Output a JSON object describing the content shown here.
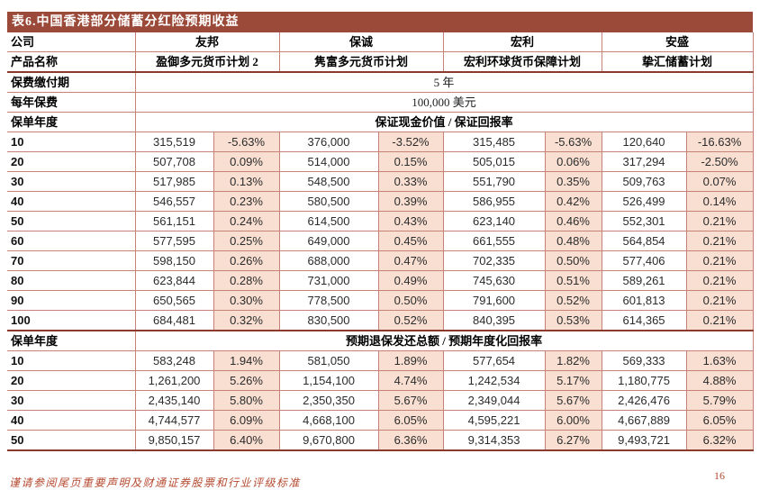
{
  "page": {
    "title": "表6.中国香港部分储蓄分红险预期收益",
    "footer_note": "谨请参阅尾页重要声明及财通证券股票和行业评级标准",
    "page_number": "16"
  },
  "colors": {
    "title_bar_bg": "#9B4938",
    "section_divider": "#8C3A2B",
    "grid_border": "#C68277",
    "percent_cell_bg": "#F8DFD1",
    "footer_text": "#B5492F"
  },
  "table": {
    "row_labels": {
      "company": "公司",
      "product": "产品名称",
      "payment_period": "保费缴付期",
      "annual_premium": "每年保费",
      "policy_year": "保单年度"
    },
    "companies": [
      "友邦",
      "保诚",
      "宏利",
      "安盛"
    ],
    "products": [
      "盈御多元货币计划 2",
      "隽富多元货币计划",
      "宏利环球货币保障计划",
      "挚汇储蓄计划"
    ],
    "payment_period_value": "5 年",
    "annual_premium_value": "100,000 美元",
    "section1": {
      "header": "保证现金价值 / 保证回报率",
      "years": [
        "10",
        "20",
        "30",
        "40",
        "50",
        "60",
        "70",
        "80",
        "90",
        "100"
      ],
      "rows": [
        [
          "315,519",
          "-5.63%",
          "376,000",
          "-3.52%",
          "315,485",
          "-5.63%",
          "120,640",
          "-16.63%"
        ],
        [
          "507,708",
          "0.09%",
          "514,000",
          "0.15%",
          "505,015",
          "0.06%",
          "317,294",
          "-2.50%"
        ],
        [
          "517,985",
          "0.13%",
          "548,500",
          "0.33%",
          "551,790",
          "0.35%",
          "509,763",
          "0.07%"
        ],
        [
          "546,557",
          "0.23%",
          "580,500",
          "0.39%",
          "586,955",
          "0.42%",
          "526,499",
          "0.14%"
        ],
        [
          "561,151",
          "0.24%",
          "614,500",
          "0.43%",
          "623,140",
          "0.46%",
          "552,301",
          "0.21%"
        ],
        [
          "577,595",
          "0.25%",
          "649,000",
          "0.45%",
          "661,555",
          "0.48%",
          "564,854",
          "0.21%"
        ],
        [
          "598,150",
          "0.26%",
          "688,000",
          "0.47%",
          "702,335",
          "0.50%",
          "577,406",
          "0.21%"
        ],
        [
          "623,844",
          "0.28%",
          "731,000",
          "0.49%",
          "745,630",
          "0.51%",
          "589,261",
          "0.21%"
        ],
        [
          "650,565",
          "0.30%",
          "778,500",
          "0.50%",
          "791,600",
          "0.52%",
          "601,813",
          "0.21%"
        ],
        [
          "684,481",
          "0.32%",
          "830,500",
          "0.52%",
          "840,395",
          "0.53%",
          "614,365",
          "0.21%"
        ]
      ]
    },
    "section2": {
      "header": "预期退保发还总额 / 预期年度化回报率",
      "years": [
        "10",
        "20",
        "30",
        "40",
        "50"
      ],
      "rows": [
        [
          "583,248",
          "1.94%",
          "581,050",
          "1.89%",
          "577,654",
          "1.82%",
          "569,333",
          "1.63%"
        ],
        [
          "1,261,200",
          "5.26%",
          "1,154,100",
          "4.74%",
          "1,242,534",
          "5.17%",
          "1,180,775",
          "4.88%"
        ],
        [
          "2,435,140",
          "5.80%",
          "2,350,350",
          "5.67%",
          "2,349,044",
          "5.67%",
          "2,426,476",
          "5.79%"
        ],
        [
          "4,744,577",
          "6.09%",
          "4,668,100",
          "6.05%",
          "4,595,221",
          "6.00%",
          "4,667,889",
          "6.05%"
        ],
        [
          "9,850,157",
          "6.40%",
          "9,670,800",
          "6.36%",
          "9,314,353",
          "6.27%",
          "9,493,721",
          "6.32%"
        ]
      ]
    }
  }
}
